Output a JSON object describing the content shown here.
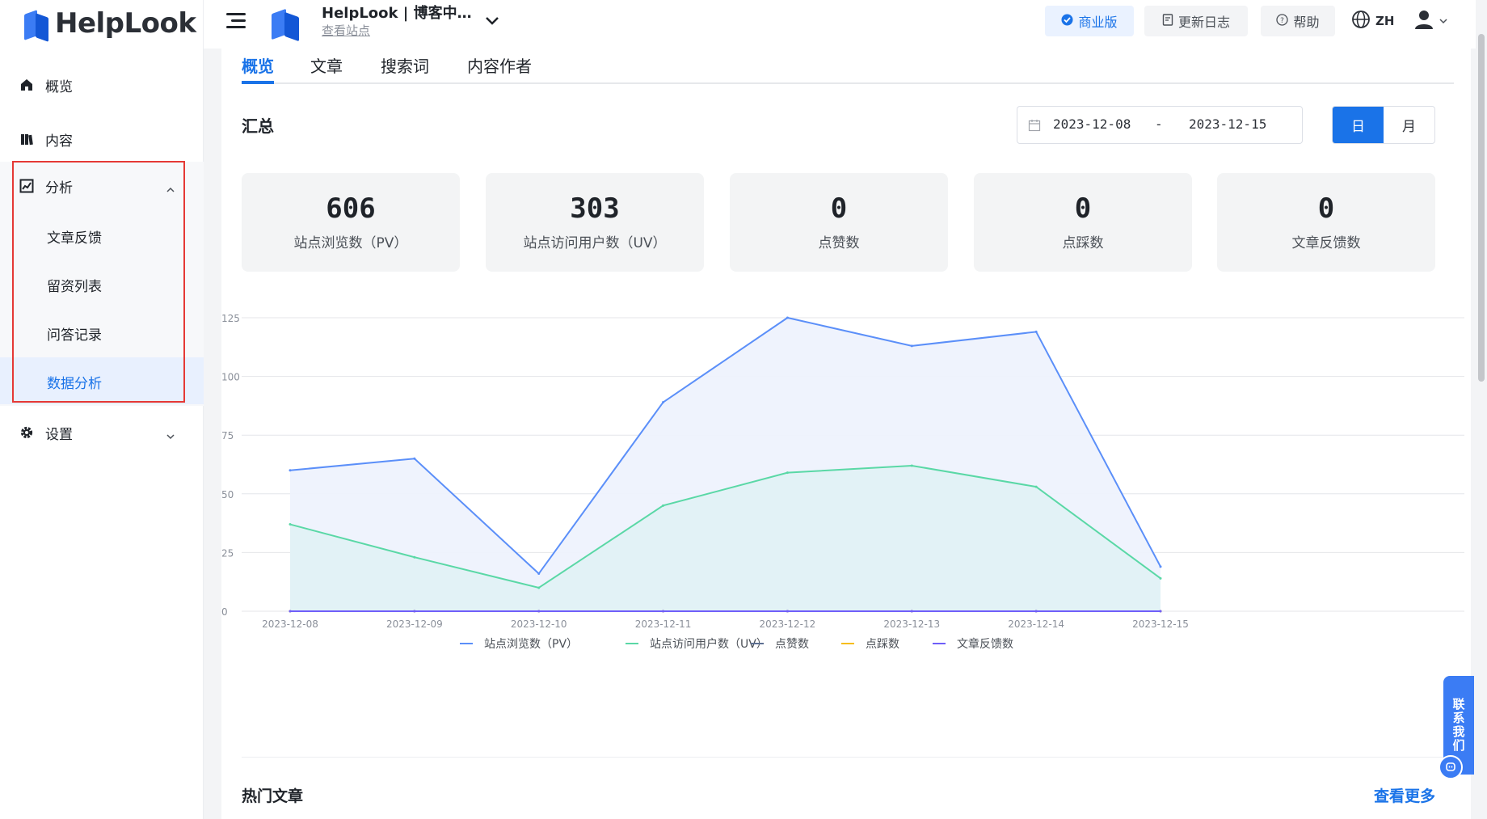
{
  "brand": {
    "logo_text": "HelpLook"
  },
  "sidebar": {
    "items": [
      {
        "label": "概览",
        "icon": "home-icon"
      },
      {
        "label": "内容",
        "icon": "book-icon"
      },
      {
        "label": "分析",
        "icon": "chart-icon",
        "expanded": true,
        "children": [
          {
            "label": "文章反馈"
          },
          {
            "label": "留资列表"
          },
          {
            "label": "问答记录"
          },
          {
            "label": "数据分析",
            "active": true
          }
        ]
      },
      {
        "label": "设置",
        "icon": "gear-icon",
        "expanded": false
      }
    ]
  },
  "header": {
    "site_name": "HelpLook | 博客中…",
    "site_link": "查看站点",
    "business": "商业版",
    "changelog": "更新日志",
    "help": "帮助",
    "lang": "ZH"
  },
  "tabs": [
    {
      "label": "概览",
      "active": true
    },
    {
      "label": "文章"
    },
    {
      "label": "搜索词"
    },
    {
      "label": "内容作者"
    }
  ],
  "summary": {
    "title": "汇总",
    "date_start": "2023-12-08",
    "date_sep": "-",
    "date_end": "2023-12-15",
    "granularity": [
      {
        "label": "日",
        "active": true
      },
      {
        "label": "月"
      }
    ],
    "cards": [
      {
        "value": "606",
        "label": "站点浏览数（PV）"
      },
      {
        "value": "303",
        "label": "站点访问用户数（UV）"
      },
      {
        "value": "0",
        "label": "点赞数"
      },
      {
        "value": "0",
        "label": "点踩数"
      },
      {
        "value": "0",
        "label": "文章反馈数"
      }
    ]
  },
  "chart_data": {
    "type": "area",
    "x": [
      "2023-12-08",
      "2023-12-09",
      "2023-12-10",
      "2023-12-11",
      "2023-12-12",
      "2023-12-13",
      "2023-12-14",
      "2023-12-15"
    ],
    "yticks": [
      0,
      25,
      50,
      75,
      100,
      125
    ],
    "ylim": [
      0,
      125
    ],
    "grid": true,
    "legend_position": "bottom",
    "series": [
      {
        "name": "站点浏览数（PV）",
        "color": "#5b8ff9",
        "fill": "#eef2fd",
        "values": [
          60,
          65,
          16,
          89,
          125,
          113,
          119,
          19
        ]
      },
      {
        "name": "站点访问用户数（UV）",
        "color": "#5ad8a6",
        "fill": "#e0f1f5",
        "values": [
          37,
          23,
          10,
          45,
          59,
          62,
          53,
          14
        ]
      },
      {
        "name": "点赞数",
        "color": "#5d7092",
        "values": [
          0,
          0,
          0,
          0,
          0,
          0,
          0,
          0
        ]
      },
      {
        "name": "点踩数",
        "color": "#f6bd16",
        "values": [
          0,
          0,
          0,
          0,
          0,
          0,
          0,
          0
        ]
      },
      {
        "name": "文章反馈数",
        "color": "#6f5ef9",
        "values": [
          0,
          0,
          0,
          0,
          0,
          0,
          0,
          0
        ]
      }
    ]
  },
  "hot": {
    "title": "热门文章",
    "more": "查看更多"
  },
  "float": {
    "contact": "联系我们"
  }
}
